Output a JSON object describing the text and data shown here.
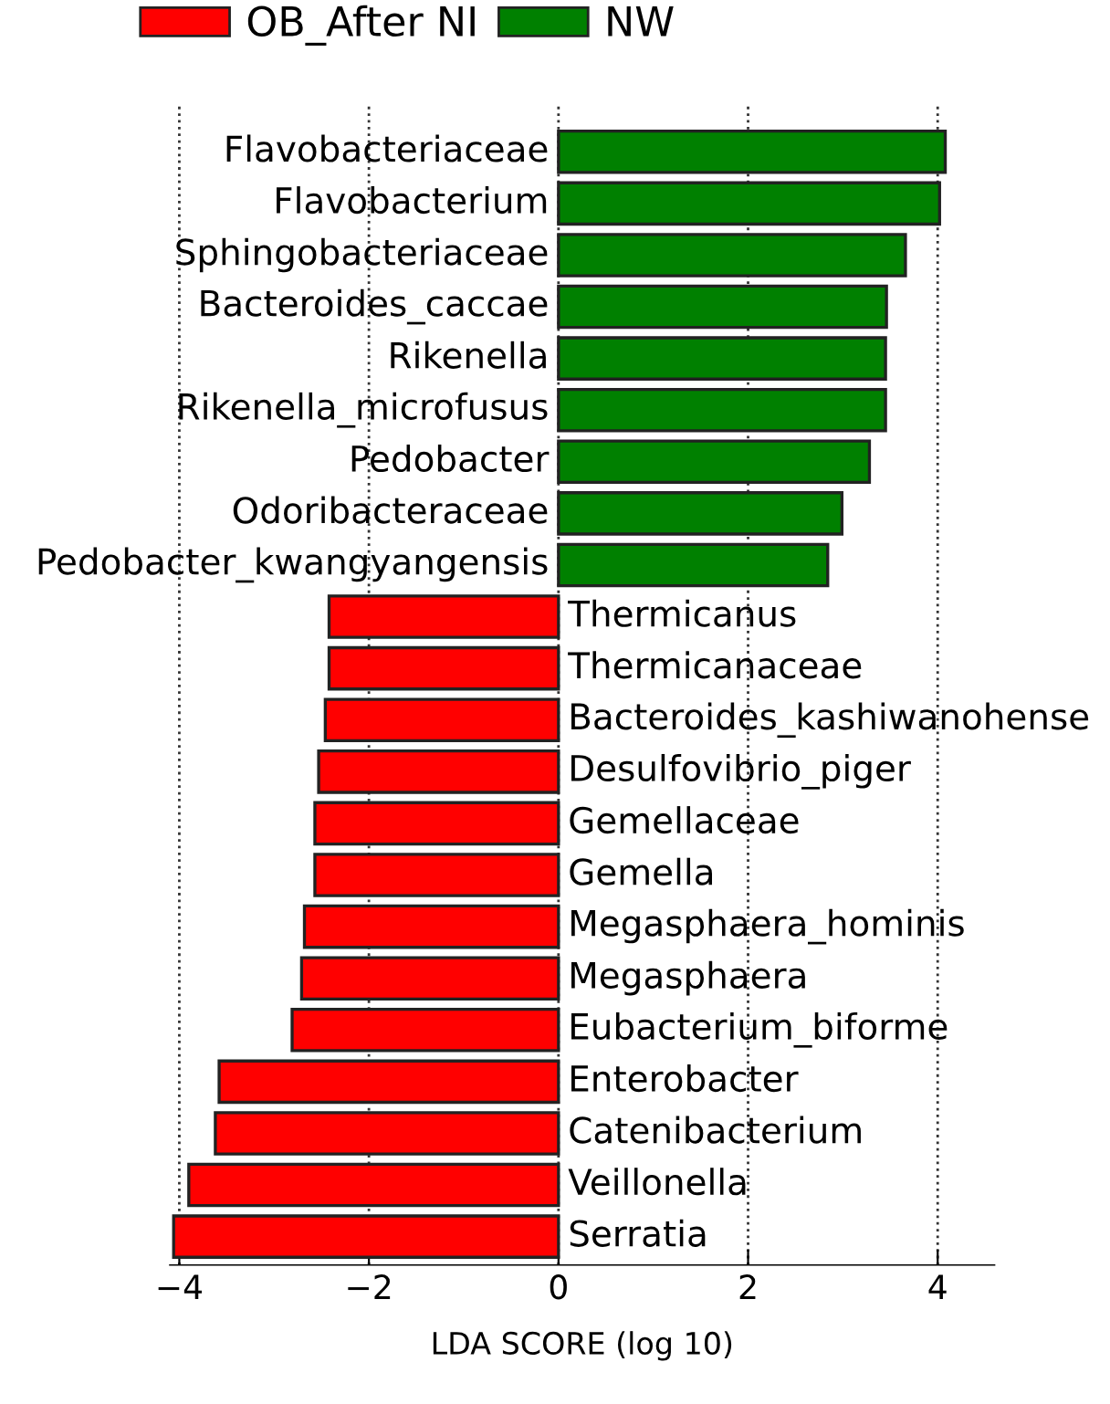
{
  "chart_data": {
    "type": "bar",
    "orientation": "horizontal",
    "xlabel": "LDA SCORE (log 10)",
    "categories": [
      "Flavobacteriaceae",
      "Flavobacterium",
      "Sphingobacteriaceae",
      "Bacteroides_caccae",
      "Rikenella",
      "Rikenella_microfusus",
      "Pedobacter",
      "Odoribacteraceae",
      "Pedobacter_kwangyangensis",
      "Thermicanus",
      "Thermicanaceae",
      "Bacteroides_kashiwanohense",
      "Desulfovibrio_piger",
      "Gemellaceae",
      "Gemella",
      "Megasphaera_hominis",
      "Megasphaera",
      "Eubacterium_biforme",
      "Enterobacter",
      "Catenibacterium",
      "Veillonella",
      "Serratia"
    ],
    "series": [
      {
        "name": "OB_After NI",
        "color": "#ff0000",
        "values": [
          null,
          null,
          null,
          null,
          null,
          null,
          null,
          null,
          null,
          -2.42,
          -2.42,
          -2.46,
          -2.53,
          -2.57,
          -2.57,
          -2.68,
          -2.71,
          -2.81,
          -3.58,
          -3.62,
          -3.9,
          -4.06
        ]
      },
      {
        "name": "NW",
        "color": "#008000",
        "values": [
          4.08,
          4.02,
          3.66,
          3.46,
          3.45,
          3.45,
          3.28,
          2.99,
          2.84,
          null,
          null,
          null,
          null,
          null,
          null,
          null,
          null,
          null,
          null,
          null,
          null,
          null
        ]
      }
    ],
    "xlim": [
      -4.1,
      4.6
    ],
    "xticks": [
      -4,
      -2,
      0,
      2,
      4
    ],
    "grid": "x",
    "legend": "top",
    "tick_labels": "x"
  }
}
